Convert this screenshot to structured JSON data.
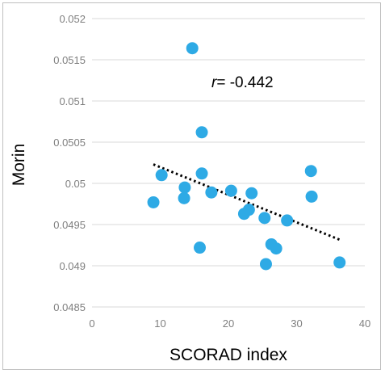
{
  "chart_data": {
    "type": "scatter",
    "title": "",
    "xlabel": "SCORAD index",
    "ylabel": "Morin",
    "xlim": [
      0,
      40
    ],
    "ylim": [
      0.0485,
      0.052
    ],
    "x_ticks": [
      0,
      10,
      20,
      30,
      40
    ],
    "y_ticks": [
      0.0485,
      0.049,
      0.0495,
      0.05,
      0.0505,
      0.051,
      0.0515,
      0.052
    ],
    "x_tick_labels": [
      "0",
      "10",
      "20",
      "30",
      "40"
    ],
    "y_tick_labels": [
      "0.0485",
      "0.049",
      "0.0495",
      "0.05",
      "0.0505",
      "0.051",
      "0.0515",
      "0.052"
    ],
    "grid": "horizontal",
    "annotation": {
      "italic": "r",
      "text": "= -0.442"
    },
    "trendline": {
      "style": "dotted",
      "x": [
        9,
        36.5
      ],
      "y": [
        0.05023,
        0.04931
      ],
      "color": "#000000"
    },
    "point_color": "#2eaae5",
    "points": [
      {
        "x": 9.0,
        "y": 0.04977
      },
      {
        "x": 10.2,
        "y": 0.0501
      },
      {
        "x": 13.6,
        "y": 0.04995
      },
      {
        "x": 13.5,
        "y": 0.04982
      },
      {
        "x": 14.7,
        "y": 0.05164
      },
      {
        "x": 16.1,
        "y": 0.05062
      },
      {
        "x": 16.1,
        "y": 0.05012
      },
      {
        "x": 15.8,
        "y": 0.04922
      },
      {
        "x": 17.5,
        "y": 0.04989
      },
      {
        "x": 20.4,
        "y": 0.04991
      },
      {
        "x": 22.3,
        "y": 0.04963
      },
      {
        "x": 23.0,
        "y": 0.04968
      },
      {
        "x": 23.4,
        "y": 0.04988
      },
      {
        "x": 25.3,
        "y": 0.04958
      },
      {
        "x": 25.5,
        "y": 0.04902
      },
      {
        "x": 26.3,
        "y": 0.04926
      },
      {
        "x": 27.0,
        "y": 0.04921
      },
      {
        "x": 28.6,
        "y": 0.04955
      },
      {
        "x": 32.1,
        "y": 0.05015
      },
      {
        "x": 32.2,
        "y": 0.04984
      },
      {
        "x": 36.3,
        "y": 0.04904
      }
    ]
  }
}
